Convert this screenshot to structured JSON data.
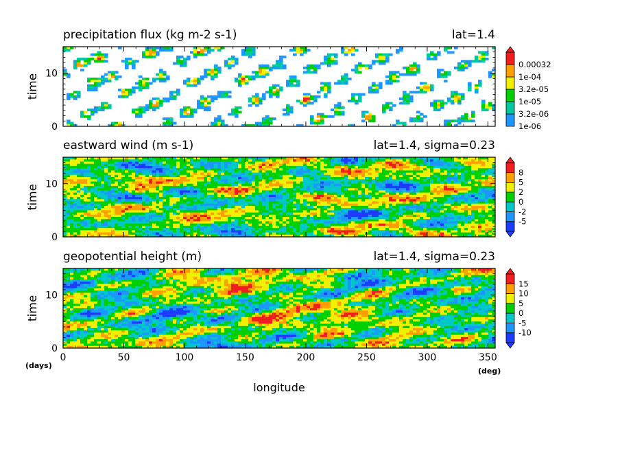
{
  "chart_data": [
    {
      "type": "heatmap",
      "title": "precipitation flux (kg m-2 s-1)",
      "subtitle": "lat=1.4",
      "ylabel": "time",
      "xlim": [
        0,
        356
      ],
      "ylim": [
        0,
        15
      ],
      "xticks": [
        0,
        50,
        100,
        150,
        200,
        250,
        300,
        350
      ],
      "yticks": [
        0,
        10
      ],
      "background": "white",
      "colorbar": {
        "labels": [
          "1e-06",
          "3.2e-06",
          "1e-05",
          "3.2e-05",
          "1e-04",
          "0.00032"
        ],
        "colors": [
          "#1e96ff",
          "#00c8a0",
          "#00d000",
          "#f0f000",
          "#ffa000",
          "#f01e1e"
        ],
        "extend": "max"
      }
    },
    {
      "type": "heatmap",
      "title": "eastward wind (m s-1)",
      "subtitle": "lat=1.4, sigma=0.23",
      "ylabel": "time",
      "xlim": [
        0,
        356
      ],
      "ylim": [
        0,
        15
      ],
      "xticks": [
        0,
        50,
        100,
        150,
        200,
        250,
        300,
        350
      ],
      "yticks": [
        0,
        10
      ],
      "colorbar": {
        "labels": [
          "-5",
          "-2",
          "0",
          "2",
          "5",
          "8"
        ],
        "colors": [
          "#1e3cff",
          "#1e96ff",
          "#00c8c8",
          "#00d000",
          "#f0f000",
          "#ffa000",
          "#f01e1e"
        ],
        "extend": "both"
      }
    },
    {
      "type": "heatmap",
      "title": "geopotential height (m)",
      "subtitle": "lat=1.4, sigma=0.23",
      "ylabel": "time",
      "xlabel": "longitude",
      "xlim": [
        0,
        356
      ],
      "ylim": [
        0,
        15
      ],
      "xticks": [
        0,
        50,
        100,
        150,
        200,
        250,
        300,
        350
      ],
      "yticks": [
        0,
        10
      ],
      "colorbar": {
        "labels": [
          "-10",
          "-5",
          "0",
          "5",
          "10",
          "15"
        ],
        "colors": [
          "#1e3cff",
          "#1e96ff",
          "#00c8c8",
          "#00d000",
          "#f0f000",
          "#ffa000",
          "#f01e1e"
        ],
        "extend": "both"
      }
    }
  ],
  "units": {
    "x": "(deg)",
    "y": "(days)"
  }
}
